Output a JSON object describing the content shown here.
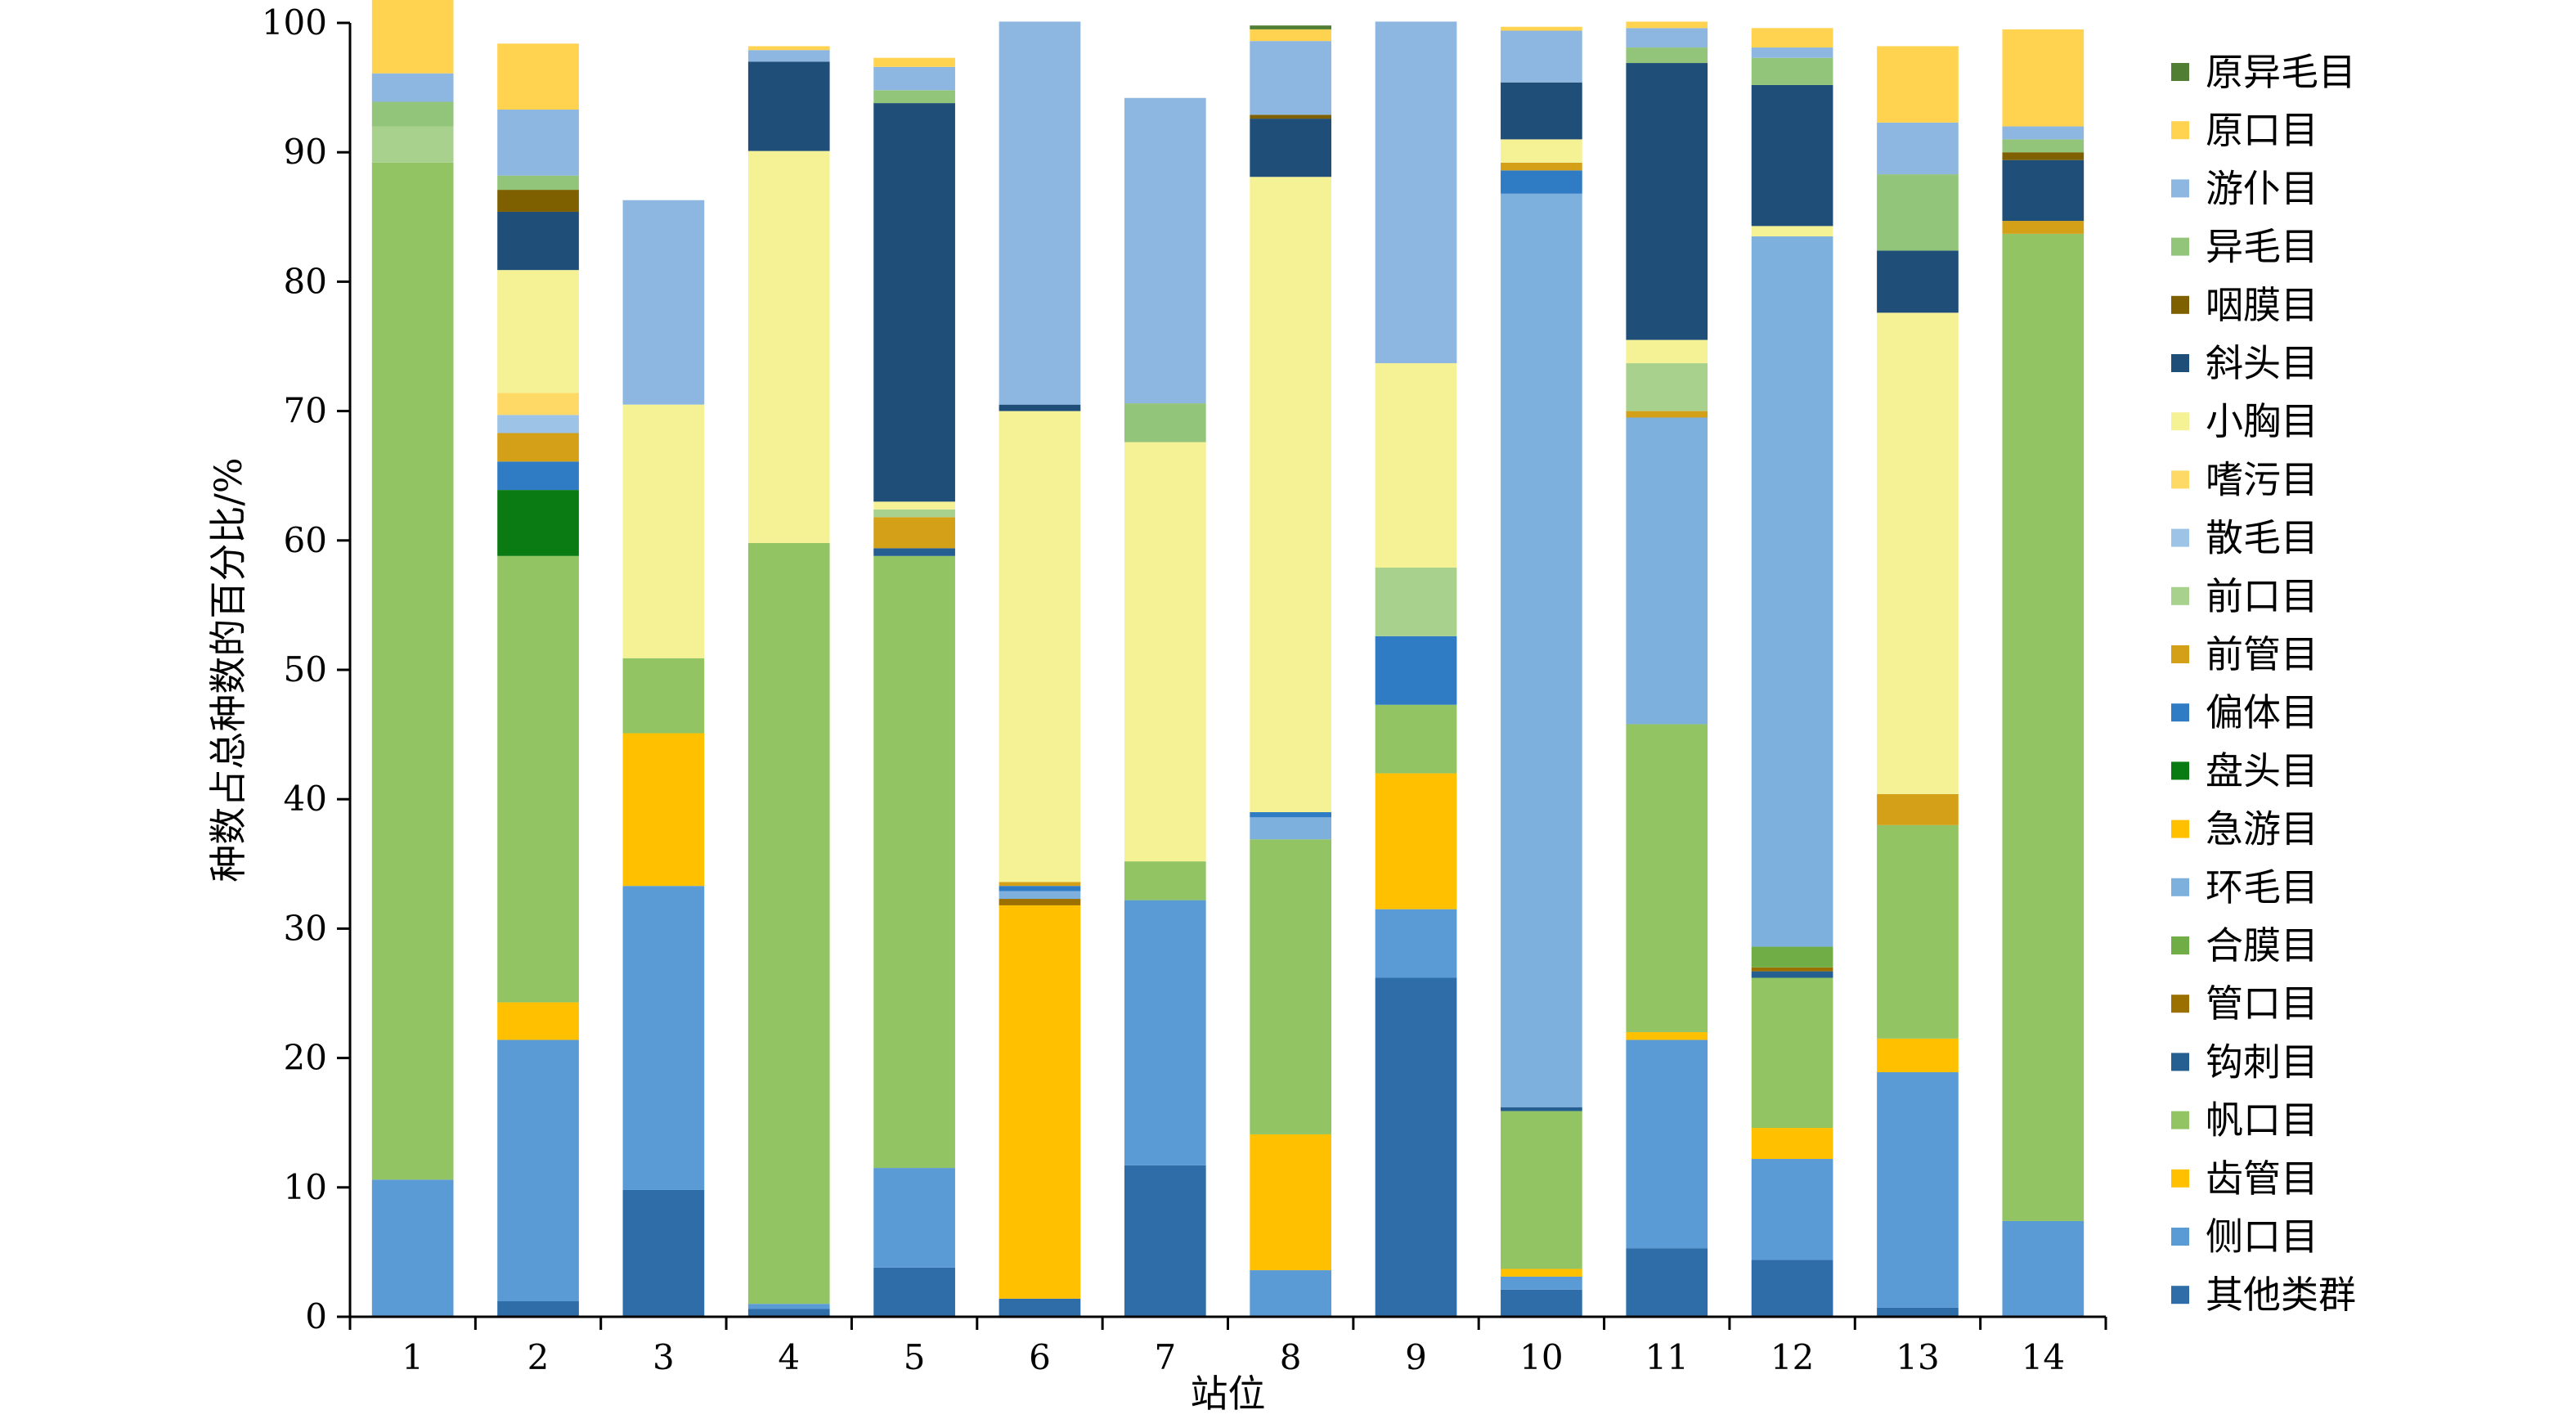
{
  "chart_data": {
    "type": "bar",
    "stacked": true,
    "title": "",
    "xlabel": "站位",
    "ylabel": "种数占总种数的百分比/%",
    "ylim": [
      0,
      100
    ],
    "yticks": [
      0,
      10,
      20,
      30,
      40,
      50,
      60,
      70,
      80,
      90,
      100
    ],
    "grid": false,
    "legend_position": "right",
    "categories": [
      "1",
      "2",
      "3",
      "4",
      "5",
      "6",
      "7",
      "8",
      "9",
      "10",
      "11",
      "12",
      "13",
      "14"
    ],
    "series": [
      {
        "name": "其他类群",
        "color": "#2e6da8",
        "values": [
          0,
          1.2,
          9.8,
          0.6,
          3.8,
          1.4,
          11.7,
          0,
          26.2,
          2.1,
          5.3,
          4.4,
          0.7,
          0
        ]
      },
      {
        "name": "侧口目",
        "color": "#5b9bd5",
        "values": [
          10.6,
          20.2,
          23.5,
          0.4,
          7.7,
          0,
          20.5,
          3.6,
          5.3,
          1.0,
          16.1,
          7.8,
          18.2,
          7.4
        ]
      },
      {
        "name": "齿管目",
        "color": "#ffc000",
        "values": [
          0,
          2.9,
          11.8,
          0,
          0,
          30.4,
          0,
          10.5,
          10.5,
          0.6,
          0.6,
          2.4,
          2.6,
          0
        ]
      },
      {
        "name": "帆口目",
        "color": "#92c464",
        "values": [
          78.6,
          34.5,
          5.8,
          58.8,
          47.3,
          0,
          3.0,
          22.8,
          5.3,
          12.2,
          23.8,
          11.6,
          16.5,
          76.3
        ]
      },
      {
        "name": "钩刺目",
        "color": "#255e91",
        "values": [
          0,
          0,
          0,
          0,
          0.6,
          0,
          0,
          0,
          0,
          0.3,
          0,
          0.5,
          0,
          0
        ]
      },
      {
        "name": "管口目",
        "color": "#9c7000",
        "values": [
          0,
          0,
          0,
          0,
          0,
          0.5,
          0,
          0,
          0,
          0,
          0,
          0.3,
          0,
          0
        ]
      },
      {
        "name": "合膜目",
        "color": "#70ad47",
        "values": [
          0,
          0,
          0,
          0,
          0,
          0,
          0,
          0,
          0,
          0,
          0,
          1.6,
          0,
          0
        ]
      },
      {
        "name": "环毛目",
        "color": "#7eb0de",
        "values": [
          0,
          0,
          0,
          0,
          0,
          0.6,
          0,
          1.7,
          0,
          70.6,
          23.7,
          54.9,
          0,
          0
        ]
      },
      {
        "name": "急游目",
        "color": "#ffc000",
        "values": [
          0,
          0,
          0,
          0,
          0,
          0,
          0,
          0,
          0,
          0,
          0,
          0,
          0,
          0
        ]
      },
      {
        "name": "盘头目",
        "color": "#0a7b13",
        "values": [
          0,
          5.1,
          0,
          0,
          0,
          0,
          0,
          0,
          0,
          0,
          0,
          0,
          0,
          0
        ]
      },
      {
        "name": "偏体目",
        "color": "#2f7bc4",
        "values": [
          0,
          2.2,
          0,
          0,
          0,
          0.4,
          0,
          0.4,
          5.3,
          1.8,
          0,
          0,
          0,
          0
        ]
      },
      {
        "name": "前管目",
        "color": "#d4a017",
        "values": [
          0,
          2.2,
          0,
          0,
          2.4,
          0.3,
          0,
          0,
          0,
          0.6,
          0.5,
          0,
          2.4,
          1.0
        ]
      },
      {
        "name": "前口目",
        "color": "#a9d18e",
        "values": [
          2.8,
          0,
          0,
          0,
          0.6,
          0,
          0,
          0,
          5.3,
          0,
          3.7,
          0,
          0,
          0
        ]
      },
      {
        "name": "散毛目",
        "color": "#9dc3e6",
        "values": [
          0,
          1.4,
          0,
          0,
          0,
          0,
          0,
          0,
          0,
          0,
          0,
          0,
          0,
          0
        ]
      },
      {
        "name": "嗜污目",
        "color": "#ffd966",
        "values": [
          0,
          1.7,
          0,
          0,
          0,
          0,
          0,
          0,
          0,
          0,
          0,
          0,
          0,
          0
        ]
      },
      {
        "name": "小胸目",
        "color": "#f5f296",
        "values": [
          0,
          9.5,
          19.6,
          30.3,
          0.6,
          36.4,
          32.4,
          49.1,
          15.8,
          1.8,
          1.8,
          0.8,
          37.2,
          0
        ]
      },
      {
        "name": "斜头目",
        "color": "#1f4e79",
        "values": [
          0,
          4.5,
          0,
          6.9,
          30.8,
          0.5,
          0,
          4.5,
          0,
          4.4,
          21.4,
          10.9,
          4.8,
          4.7
        ]
      },
      {
        "name": "咽膜目",
        "color": "#7f6000",
        "values": [
          0,
          1.7,
          0,
          0,
          0,
          0,
          0,
          0.3,
          0,
          0,
          0,
          0,
          0,
          0.6
        ]
      },
      {
        "name": "异毛目",
        "color": "#92c47a",
        "values": [
          1.9,
          1.1,
          0,
          0,
          1.0,
          0,
          3.0,
          0,
          0,
          0,
          1.2,
          2.1,
          5.9,
          1.0
        ]
      },
      {
        "name": "游仆目",
        "color": "#8db6e0",
        "values": [
          2.2,
          5.1,
          15.8,
          0.9,
          1.8,
          29.6,
          23.6,
          5.7,
          26.4,
          4.0,
          1.5,
          0.8,
          4.0,
          1.0
        ]
      },
      {
        "name": "原口目",
        "color": "#ffd34f",
        "values": [
          6.4,
          5.1,
          0,
          0.3,
          0.7,
          0,
          0,
          0.9,
          0,
          0.3,
          0.5,
          1.5,
          5.9,
          7.5
        ]
      },
      {
        "name": "原异毛目",
        "color": "#507e32",
        "values": [
          0,
          0,
          0,
          0,
          0,
          0,
          0,
          0.3,
          0,
          0,
          0,
          0,
          0,
          0
        ]
      }
    ]
  }
}
